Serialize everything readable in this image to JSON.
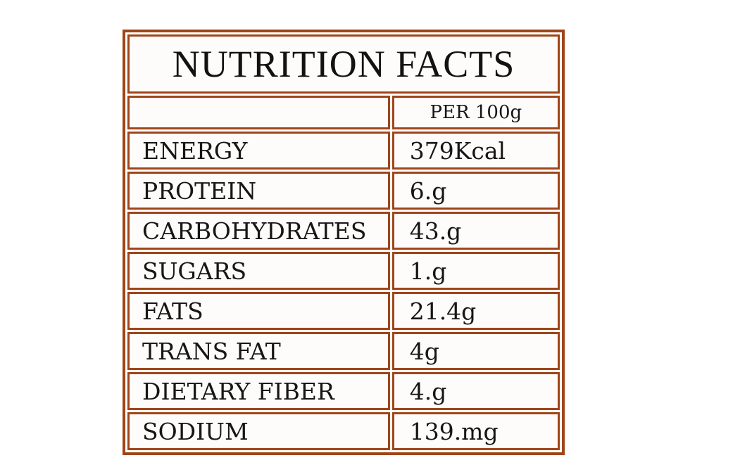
{
  "table": {
    "title": "NUTRITION FACTS",
    "header": {
      "label_column": "",
      "value_column": "PER 100g"
    },
    "rows": [
      {
        "label": "ENERGY",
        "value": "379Kcal"
      },
      {
        "label": "PROTEIN",
        "value": "6.g"
      },
      {
        "label": "CARBOHYDRATES",
        "value": "43.g"
      },
      {
        "label": "SUGARS",
        "value": "1.g"
      },
      {
        "label": "FATS",
        "value": "21.4g"
      },
      {
        "label": "TRANS FAT",
        "value": "4g"
      },
      {
        "label": "DIETARY FIBER",
        "value": "4.g"
      },
      {
        "label": "SODIUM",
        "value": "139.mg"
      }
    ],
    "colors": {
      "border": "#A04519",
      "text": "#161616",
      "cell_background": "#fdfcfb",
      "page_background": "#ffffff"
    }
  }
}
